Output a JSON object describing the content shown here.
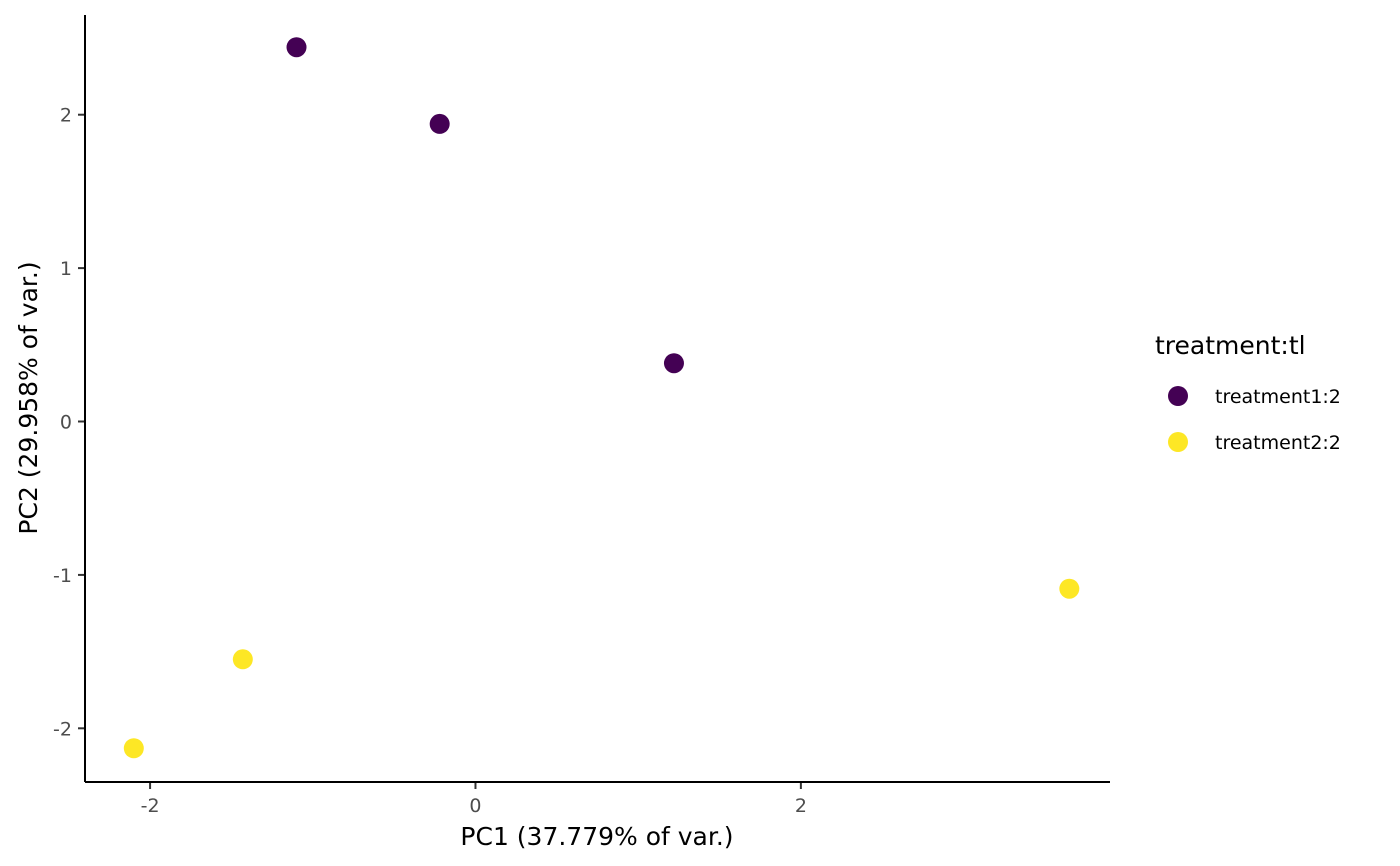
{
  "chart_data": {
    "type": "scatter",
    "xlabel": "PC1 (37.779% of var.)",
    "ylabel": "PC2 (29.958% of var.)",
    "xlim": [
      -2.4,
      3.9
    ],
    "ylim": [
      -2.35,
      2.65
    ],
    "x_ticks": [
      -2,
      0,
      2
    ],
    "y_ticks": [
      -2,
      -1,
      0,
      1,
      2
    ],
    "grid": false,
    "legend": {
      "title": "treatment:tl",
      "placement": "right"
    },
    "series": [
      {
        "name": "treatment1:2",
        "color": "#440154",
        "points": [
          {
            "x": -1.1,
            "y": 2.44
          },
          {
            "x": -0.22,
            "y": 1.94
          },
          {
            "x": 1.22,
            "y": 0.38
          }
        ]
      },
      {
        "name": "treatment2:2",
        "color": "#FDE725",
        "points": [
          {
            "x": 3.65,
            "y": -1.09
          },
          {
            "x": -1.43,
            "y": -1.55
          },
          {
            "x": -2.1,
            "y": -2.13
          }
        ]
      }
    ]
  }
}
